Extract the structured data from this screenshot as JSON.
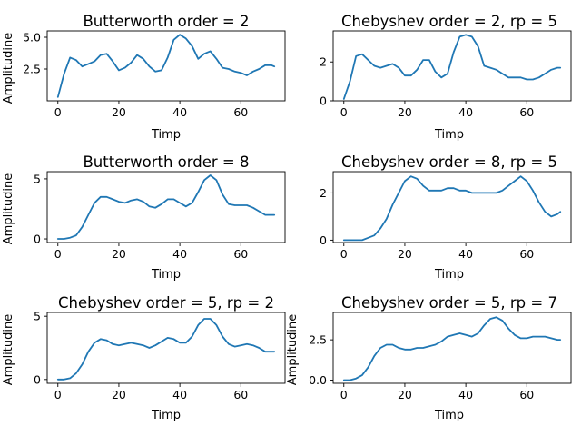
{
  "chart_data": [
    {
      "type": "line",
      "title": "Butterworth order = 2",
      "xlabel": "Timp",
      "ylabel": "Amplitudine",
      "xlim": [
        -3.5,
        74.5
      ],
      "ylim": [
        0.0,
        5.5
      ],
      "xticks": [
        0,
        20,
        40,
        60
      ],
      "yticks": [
        2.5,
        5.0
      ],
      "ytick_labels": [
        "2.5",
        "5.0"
      ],
      "color": "#1f77b4",
      "x": [
        0,
        2,
        4,
        6,
        8,
        10,
        12,
        14,
        16,
        18,
        20,
        22,
        24,
        26,
        28,
        30,
        32,
        34,
        36,
        38,
        40,
        42,
        44,
        46,
        48,
        50,
        52,
        54,
        56,
        58,
        60,
        62,
        64,
        66,
        68,
        70,
        71
      ],
      "y": [
        0.3,
        2.1,
        3.4,
        3.2,
        2.7,
        2.9,
        3.1,
        3.6,
        3.7,
        3.1,
        2.4,
        2.6,
        3.0,
        3.6,
        3.3,
        2.7,
        2.3,
        2.4,
        3.4,
        4.8,
        5.2,
        4.9,
        4.3,
        3.3,
        3.7,
        3.9,
        3.3,
        2.6,
        2.5,
        2.3,
        2.2,
        2.0,
        2.3,
        2.5,
        2.8,
        2.8,
        2.7
      ]
    },
    {
      "type": "line",
      "title": "Chebyshev order = 2, rp = 5",
      "xlabel": "Timp",
      "ylabel": "",
      "xlim": [
        -3.5,
        74.5
      ],
      "ylim": [
        0.0,
        3.6
      ],
      "xticks": [
        0,
        20,
        40,
        60
      ],
      "yticks": [
        0,
        2
      ],
      "ytick_labels": [
        "0",
        "2"
      ],
      "color": "#1f77b4",
      "x": [
        0,
        2,
        4,
        6,
        8,
        10,
        12,
        14,
        16,
        18,
        20,
        22,
        24,
        26,
        28,
        30,
        32,
        34,
        36,
        38,
        40,
        42,
        44,
        46,
        48,
        50,
        52,
        54,
        56,
        58,
        60,
        62,
        64,
        66,
        68,
        70,
        71
      ],
      "y": [
        0.1,
        1.0,
        2.3,
        2.4,
        2.1,
        1.8,
        1.7,
        1.8,
        1.9,
        1.7,
        1.3,
        1.3,
        1.6,
        2.1,
        2.1,
        1.5,
        1.2,
        1.4,
        2.5,
        3.3,
        3.4,
        3.3,
        2.8,
        1.8,
        1.7,
        1.6,
        1.4,
        1.2,
        1.2,
        1.2,
        1.1,
        1.1,
        1.2,
        1.4,
        1.6,
        1.7,
        1.7
      ]
    },
    {
      "type": "line",
      "title": "Butterworth order = 8",
      "xlabel": "Timp",
      "ylabel": "Amplitudine",
      "xlim": [
        -3.5,
        74.5
      ],
      "ylim": [
        -0.3,
        5.6
      ],
      "xticks": [
        0,
        20,
        40,
        60
      ],
      "yticks": [
        0,
        5
      ],
      "ytick_labels": [
        "0",
        "5"
      ],
      "color": "#1f77b4",
      "x": [
        0,
        2,
        4,
        6,
        8,
        10,
        12,
        14,
        16,
        18,
        20,
        22,
        24,
        26,
        28,
        30,
        32,
        34,
        36,
        38,
        40,
        42,
        44,
        46,
        48,
        50,
        52,
        54,
        56,
        58,
        60,
        62,
        64,
        66,
        68,
        70,
        71
      ],
      "y": [
        0.0,
        0.0,
        0.1,
        0.3,
        1.0,
        2.0,
        3.0,
        3.5,
        3.5,
        3.3,
        3.1,
        3.0,
        3.2,
        3.3,
        3.1,
        2.7,
        2.6,
        2.9,
        3.3,
        3.3,
        3.0,
        2.7,
        3.0,
        3.9,
        4.9,
        5.3,
        4.9,
        3.7,
        2.9,
        2.8,
        2.8,
        2.8,
        2.6,
        2.3,
        2.0,
        2.0,
        2.0
      ]
    },
    {
      "type": "line",
      "title": "Chebyshev order = 8, rp = 5",
      "xlabel": "Timp",
      "ylabel": "",
      "xlim": [
        -3.5,
        74.5
      ],
      "ylim": [
        -0.1,
        2.9
      ],
      "xticks": [
        0,
        20,
        40,
        60
      ],
      "yticks": [
        0,
        2
      ],
      "ytick_labels": [
        "0",
        "2"
      ],
      "color": "#1f77b4",
      "x": [
        0,
        2,
        4,
        6,
        8,
        10,
        12,
        14,
        16,
        18,
        20,
        22,
        24,
        26,
        28,
        30,
        32,
        34,
        36,
        38,
        40,
        42,
        44,
        46,
        48,
        50,
        52,
        54,
        56,
        58,
        60,
        62,
        64,
        66,
        68,
        70,
        71
      ],
      "y": [
        0.0,
        0.0,
        0.0,
        0.0,
        0.1,
        0.2,
        0.5,
        0.9,
        1.5,
        2.0,
        2.5,
        2.7,
        2.6,
        2.3,
        2.1,
        2.1,
        2.1,
        2.2,
        2.2,
        2.1,
        2.1,
        2.0,
        2.0,
        2.0,
        2.0,
        2.0,
        2.1,
        2.3,
        2.5,
        2.7,
        2.5,
        2.1,
        1.6,
        1.2,
        1.0,
        1.1,
        1.2
      ]
    },
    {
      "type": "line",
      "title": "Chebyshev order = 5, rp = 2",
      "xlabel": "Timp",
      "ylabel": "Amplitudine",
      "xlim": [
        -3.5,
        74.5
      ],
      "ylim": [
        -0.3,
        5.3
      ],
      "xticks": [
        0,
        20,
        40,
        60
      ],
      "yticks": [
        0,
        5
      ],
      "ytick_labels": [
        "0",
        "5"
      ],
      "color": "#1f77b4",
      "x": [
        0,
        2,
        4,
        6,
        8,
        10,
        12,
        14,
        16,
        18,
        20,
        22,
        24,
        26,
        28,
        30,
        32,
        34,
        36,
        38,
        40,
        42,
        44,
        46,
        48,
        50,
        52,
        54,
        56,
        58,
        60,
        62,
        64,
        66,
        68,
        70,
        71
      ],
      "y": [
        0.0,
        0.0,
        0.1,
        0.5,
        1.2,
        2.2,
        2.9,
        3.2,
        3.1,
        2.8,
        2.7,
        2.8,
        2.9,
        2.8,
        2.7,
        2.5,
        2.7,
        3.0,
        3.3,
        3.2,
        2.9,
        2.9,
        3.4,
        4.3,
        4.8,
        4.8,
        4.3,
        3.4,
        2.8,
        2.6,
        2.7,
        2.8,
        2.7,
        2.5,
        2.2,
        2.2,
        2.2
      ]
    },
    {
      "type": "line",
      "title": "Chebyshev order = 5, rp = 7",
      "xlabel": "Timp",
      "ylabel": "Amplitudine",
      "xlim": [
        -3.5,
        74.5
      ],
      "ylim": [
        -0.2,
        4.2
      ],
      "xticks": [
        0,
        20,
        40,
        60
      ],
      "yticks": [
        0.0,
        2.5
      ],
      "ytick_labels": [
        "0.0",
        "2.5"
      ],
      "color": "#1f77b4",
      "x": [
        0,
        2,
        4,
        6,
        8,
        10,
        12,
        14,
        16,
        18,
        20,
        22,
        24,
        26,
        28,
        30,
        32,
        34,
        36,
        38,
        40,
        42,
        44,
        46,
        48,
        50,
        52,
        54,
        56,
        58,
        60,
        62,
        64,
        66,
        68,
        70,
        71
      ],
      "y": [
        0.0,
        0.0,
        0.1,
        0.3,
        0.8,
        1.5,
        2.0,
        2.2,
        2.2,
        2.0,
        1.9,
        1.9,
        2.0,
        2.0,
        2.1,
        2.2,
        2.4,
        2.7,
        2.8,
        2.9,
        2.8,
        2.7,
        2.9,
        3.4,
        3.8,
        3.9,
        3.7,
        3.2,
        2.8,
        2.6,
        2.6,
        2.7,
        2.7,
        2.7,
        2.6,
        2.5,
        2.5
      ]
    }
  ]
}
